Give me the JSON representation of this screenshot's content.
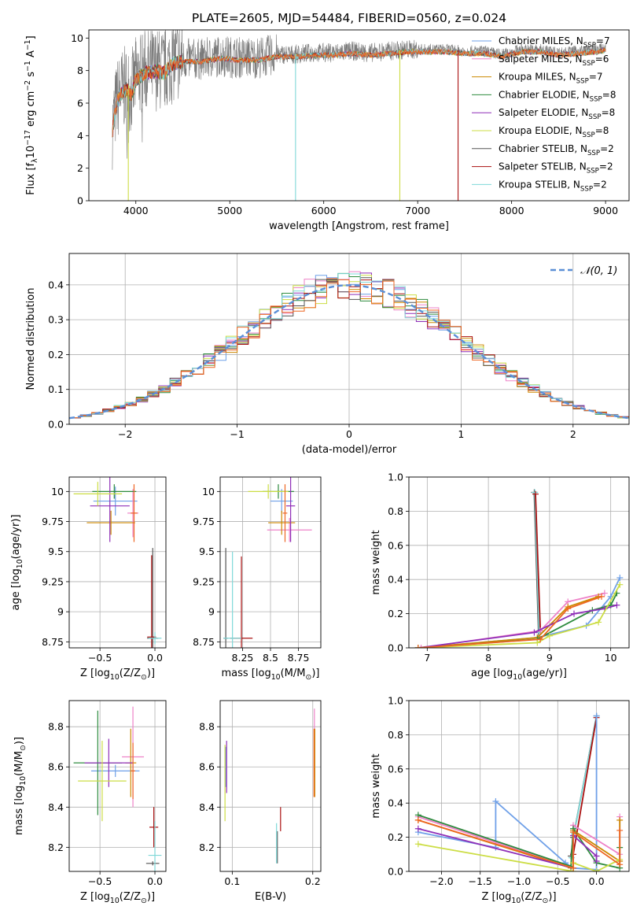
{
  "figure": {
    "title": "PLATE=2605, MJD=54484, FIBERID=0560, z=0.024"
  },
  "colors": {
    "Chabrier MILES": "#6fa0e8",
    "Salpeter MILES": "#ee82c8",
    "Kroupa MILES": "#cc8800",
    "Chabrier ELODIE": "#2e8b3e",
    "Salpeter ELODIE": "#8f2fb8",
    "Kroupa ELODIE": "#ccdd44",
    "Chabrier STELIB": "#555555",
    "Salpeter STELIB": "#aa1111",
    "Kroupa STELIB": "#7fd8d8",
    "extra_orange": "#ee6622",
    "normal_curve": "#5b8fd6"
  },
  "legend_labels": [
    {
      "pre": "Chabrier MILES, N",
      "sub": "SSP",
      "post": "=7"
    },
    {
      "pre": "Salpeter MILES, N",
      "sub": "SSP",
      "post": "=6"
    },
    {
      "pre": "Kroupa MILES, N",
      "sub": "SSP",
      "post": "=7"
    },
    {
      "pre": "Chabrier ELODIE, N",
      "sub": "SSP",
      "post": "=8"
    },
    {
      "pre": "Salpeter ELODIE, N",
      "sub": "SSP",
      "post": "=8"
    },
    {
      "pre": "Kroupa ELODIE, N",
      "sub": "SSP",
      "post": "=8"
    },
    {
      "pre": "Chabrier STELIB, N",
      "sub": "SSP",
      "post": "=2"
    },
    {
      "pre": "Salpeter STELIB, N",
      "sub": "SSP",
      "post": "=2"
    },
    {
      "pre": "Kroupa STELIB, N",
      "sub": "SSP",
      "post": "=2"
    }
  ],
  "chart_data": [
    {
      "id": "spectrum",
      "type": "line",
      "xlabel": "wavelength [Angstrom, rest frame]",
      "ylabel_parts": {
        "pre": "Flux [f",
        "sub": "λ",
        "mid": "10",
        "sup1": "−17",
        "mid2": " erg cm",
        "sup2": "−2",
        "mid3": " s",
        "sup3": "−1",
        "post": " A",
        "sup4": "−1",
        "end": "]"
      },
      "xlim": [
        3500,
        9250
      ],
      "ylim": [
        0,
        10.5
      ],
      "xticks": [
        4000,
        5000,
        6000,
        7000,
        8000,
        9000
      ],
      "yticks": [
        0,
        2,
        4,
        6,
        8,
        10
      ],
      "legend_loc": "upper right",
      "envelope": {
        "x": [
          3750,
          3800,
          3850,
          3900,
          3950,
          4000,
          4100,
          4200,
          4300,
          4400,
          4500,
          4700,
          4900,
          5100,
          5300,
          5500,
          5700,
          5900,
          6100,
          6300,
          6500,
          6700,
          6900,
          7100,
          7300,
          7500,
          7700,
          7900,
          8100,
          8300,
          8500,
          8700,
          8900,
          9000
        ],
        "y": [
          4.5,
          6.2,
          6.8,
          7.0,
          6.6,
          7.6,
          8.0,
          8.1,
          8.0,
          8.6,
          8.7,
          8.7,
          8.9,
          8.8,
          8.8,
          9.0,
          9.0,
          9.1,
          9.1,
          9.2,
          9.1,
          9.2,
          9.3,
          9.3,
          9.3,
          9.2,
          9.2,
          9.0,
          9.3,
          9.3,
          9.1,
          9.2,
          9.3,
          9.4
        ]
      },
      "drop_lines": [
        {
          "x": 3920,
          "series": "Kroupa ELODIE"
        },
        {
          "x": 5700,
          "series": "Kroupa STELIB"
        },
        {
          "x": 6810,
          "series": "Kroupa ELODIE"
        },
        {
          "x": 7430,
          "series": "Salpeter STELIB"
        }
      ]
    },
    {
      "id": "residuals",
      "type": "step",
      "xlabel": "(data-model)/error",
      "ylabel": "Normed distribution",
      "xlim": [
        -2.5,
        2.5
      ],
      "ylim": [
        0,
        0.49
      ],
      "xticks": [
        -2,
        -1,
        0,
        1,
        2
      ],
      "yticks": [
        0.0,
        0.1,
        0.2,
        0.3,
        0.4
      ],
      "bin_width": 0.1,
      "grid": true,
      "legend_label": "𝒩(0, 1)",
      "legend_loc": "upper right"
    },
    {
      "id": "age_vs_Z",
      "type": "errorbar",
      "xlabel_parts": {
        "pre": "Z [log",
        "sub": "10",
        "post": "(Z/Z",
        "sub2": "⊙",
        "end": ")]"
      },
      "ylabel_parts": {
        "pre": "age  [log",
        "sub": "10",
        "post": "(age/yr)]"
      },
      "xlim": [
        -0.78,
        0.1
      ],
      "ylim": [
        8.7,
        10.12
      ],
      "xticks": [
        -0.5,
        0.0
      ],
      "xtick_labels": [
        "−0.5",
        "0.0"
      ],
      "yticks": [
        8.75,
        9.0,
        9.25,
        9.5,
        9.75,
        10.0
      ],
      "points": [
        {
          "s": "Chabrier MILES",
          "x": -0.36,
          "xe": 0.2,
          "y": 9.92,
          "ye": 0.12
        },
        {
          "s": "Salpeter MILES",
          "x": -0.2,
          "xe": 0.05,
          "y": 9.82,
          "ye": 0.2
        },
        {
          "s": "Kroupa MILES",
          "x": -0.4,
          "xe": 0.22,
          "y": 9.74,
          "ye": 0.1
        },
        {
          "s": "Chabrier ELODIE",
          "x": -0.37,
          "xe": 0.2,
          "y": 10.0,
          "ye": 0.06
        },
        {
          "s": "Salpeter ELODIE",
          "x": -0.41,
          "xe": 0.18,
          "y": 9.88,
          "ye": 0.3
        },
        {
          "s": "Kroupa ELODIE",
          "x": -0.52,
          "xe": 0.22,
          "y": 9.98,
          "ye": 0.1
        },
        {
          "s": "Chabrier STELIB",
          "x": -0.02,
          "xe": 0.05,
          "y": 8.78,
          "ye": 0.75
        },
        {
          "s": "Salpeter STELIB",
          "x": -0.03,
          "xe": 0.04,
          "y": 8.79,
          "ye": 0.68
        },
        {
          "s": "Kroupa STELIB",
          "x": 0.0,
          "xe": 0.06,
          "y": 8.78,
          "ye": 0.05
        },
        {
          "s": "extra_orange",
          "x": -0.19,
          "xe": 0.03,
          "y": 9.82,
          "ye": 0.24
        }
      ]
    },
    {
      "id": "age_vs_mass",
      "type": "errorbar",
      "xlabel_parts": {
        "pre": "mass [log",
        "sub": "10",
        "post": "(M/M",
        "sub2": "⊙",
        "end": ")]"
      },
      "xlim": [
        8.05,
        8.95
      ],
      "ylim": [
        8.7,
        10.12
      ],
      "xticks": [
        8.25,
        8.5,
        8.75
      ],
      "yticks": [
        8.75,
        9.0,
        9.25,
        9.5,
        9.75,
        10.0
      ],
      "points": [
        {
          "s": "Chabrier MILES",
          "x": 8.6,
          "xe": 0.1,
          "y": 9.92,
          "ye": 0.1
        },
        {
          "s": "Salpeter MILES",
          "x": 8.67,
          "xe": 0.2,
          "y": 9.68,
          "ye": 0.1
        },
        {
          "s": "Kroupa MILES",
          "x": 8.6,
          "xe": 0.12,
          "y": 9.74,
          "ye": 0.1
        },
        {
          "s": "Chabrier ELODIE",
          "x": 8.57,
          "xe": 0.14,
          "y": 10.0,
          "ye": 0.06
        },
        {
          "s": "Salpeter ELODIE",
          "x": 8.68,
          "xe": 0.04,
          "y": 9.88,
          "ye": 0.3
        },
        {
          "s": "Kroupa ELODIE",
          "x": 8.48,
          "xe": 0.18,
          "y": 10.0,
          "ye": 0.06
        },
        {
          "s": "Chabrier STELIB",
          "x": 8.1,
          "xe": 0.02,
          "y": 8.78,
          "ye": 0.75
        },
        {
          "s": "Salpeter STELIB",
          "x": 8.24,
          "xe": 0.1,
          "y": 8.78,
          "ye": 0.68
        },
        {
          "s": "Kroupa STELIB",
          "x": 8.16,
          "xe": 0.08,
          "y": 8.78,
          "ye": 0.72
        },
        {
          "s": "extra_orange",
          "x": 8.63,
          "xe": 0.02,
          "y": 9.82,
          "ye": 0.24
        }
      ]
    },
    {
      "id": "weight_vs_age",
      "type": "line",
      "xlabel_parts": {
        "pre": "age  [log",
        "sub": "10",
        "post": "(age/yr)]"
      },
      "ylabel": "mass weight",
      "xlim": [
        6.7,
        10.3
      ],
      "ylim": [
        0,
        1.0
      ],
      "xticks": [
        7,
        8,
        9,
        10
      ],
      "yticks": [
        0.0,
        0.2,
        0.4,
        0.6,
        0.8,
        1.0
      ],
      "series": [
        {
          "s": "Chabrier STELIB",
          "x": [
            8.75,
            8.82
          ],
          "y": [
            0.91,
            0.09
          ]
        },
        {
          "s": "Kroupa STELIB",
          "x": [
            8.76,
            8.83
          ],
          "y": [
            0.91,
            0.09
          ]
        },
        {
          "s": "Salpeter STELIB",
          "x": [
            8.77,
            8.85
          ],
          "y": [
            0.9,
            0.1
          ]
        },
        {
          "s": "Chabrier MILES",
          "x": [
            6.85,
            8.8,
            9.6,
            10.0,
            10.15
          ],
          "y": [
            0.0,
            0.06,
            0.13,
            0.3,
            0.41
          ]
        },
        {
          "s": "Salpeter MILES",
          "x": [
            6.9,
            8.85,
            9.3,
            9.9
          ],
          "y": [
            0.0,
            0.1,
            0.27,
            0.32
          ]
        },
        {
          "s": "Kroupa MILES",
          "x": [
            6.85,
            8.8,
            9.3,
            9.8
          ],
          "y": [
            0.0,
            0.06,
            0.24,
            0.3
          ]
        },
        {
          "s": "Chabrier ELODIE",
          "x": [
            6.85,
            8.8,
            9.7,
            10.0,
            10.1
          ],
          "y": [
            0.0,
            0.05,
            0.22,
            0.25,
            0.32
          ]
        },
        {
          "s": "Salpeter ELODIE",
          "x": [
            6.85,
            8.75,
            9.4,
            9.9,
            10.1
          ],
          "y": [
            0.0,
            0.09,
            0.2,
            0.23,
            0.25
          ]
        },
        {
          "s": "Kroupa ELODIE",
          "x": [
            6.85,
            8.8,
            9.0,
            9.8,
            10.15
          ],
          "y": [
            0.0,
            0.03,
            0.07,
            0.15,
            0.37
          ]
        },
        {
          "s": "extra_orange",
          "x": [
            6.85,
            8.85,
            9.3,
            9.85
          ],
          "y": [
            0.0,
            0.05,
            0.23,
            0.3
          ]
        }
      ]
    },
    {
      "id": "mass_vs_Z",
      "type": "errorbar",
      "xlabel_parts": {
        "pre": "Z [log",
        "sub": "10",
        "post": "(Z/Z",
        "sub2": "⊙",
        "end": ")]"
      },
      "ylabel_parts": {
        "pre": "mass [log",
        "sub": "10",
        "post": "(M/M",
        "sub2": "⊙",
        "end": ")]"
      },
      "xlim": [
        -0.78,
        0.1
      ],
      "ylim": [
        8.08,
        8.93
      ],
      "xticks": [
        -0.5,
        0.0
      ],
      "xtick_labels": [
        "−0.5",
        "0.0"
      ],
      "yticks": [
        8.2,
        8.4,
        8.6,
        8.8
      ],
      "points": [
        {
          "s": "Chabrier MILES",
          "x": -0.36,
          "xe": 0.22,
          "y": 8.58,
          "ye": 0.03
        },
        {
          "s": "Salpeter MILES",
          "x": -0.2,
          "xe": 0.1,
          "y": 8.65,
          "ye": 0.25
        },
        {
          "s": "Kroupa MILES",
          "x": -0.22,
          "xe": 0.05,
          "y": 8.62,
          "ye": 0.17
        },
        {
          "s": "Chabrier ELODIE",
          "x": -0.52,
          "xe": 0.22,
          "y": 8.62,
          "ye": 0.26
        },
        {
          "s": "Salpeter ELODIE",
          "x": -0.42,
          "xe": 0.22,
          "y": 8.62,
          "ye": 0.12
        },
        {
          "s": "Kroupa ELODIE",
          "x": -0.48,
          "xe": 0.22,
          "y": 8.53,
          "ye": 0.2
        },
        {
          "s": "Chabrier STELIB",
          "x": -0.02,
          "xe": 0.06,
          "y": 8.12,
          "ye": 0.01
        },
        {
          "s": "Salpeter STELIB",
          "x": -0.01,
          "xe": 0.04,
          "y": 8.3,
          "ye": 0.1
        },
        {
          "s": "Kroupa STELIB",
          "x": 0.0,
          "xe": 0.06,
          "y": 8.16,
          "ye": 0.17
        },
        {
          "s": "extra_orange",
          "x": -0.2,
          "xe": 0.02,
          "y": 8.58,
          "ye": 0.14
        }
      ]
    },
    {
      "id": "mass_vs_ebv",
      "type": "errorbar",
      "xlabel": "E(B-V)",
      "xlim": [
        0.085,
        0.21
      ],
      "ylim": [
        8.08,
        8.93
      ],
      "xticks": [
        0.1,
        0.2
      ],
      "xtick_labels": [
        "0.1",
        "0.2"
      ],
      "yticks": [
        8.2,
        8.4,
        8.6,
        8.8
      ],
      "points": [
        {
          "s": "Chabrier MILES",
          "x": 0.0918,
          "xe": 0,
          "y": 8.6,
          "ye": 0.1
        },
        {
          "s": "Salpeter MILES",
          "x": 0.202,
          "xe": 0,
          "y": 8.72,
          "ye": 0.17
        },
        {
          "s": "Kroupa MILES",
          "x": 0.2025,
          "xe": 0,
          "y": 8.62,
          "ye": 0.17
        },
        {
          "s": "Salpeter ELODIE",
          "x": 0.093,
          "xe": 0,
          "y": 8.6,
          "ye": 0.13
        },
        {
          "s": "Kroupa ELODIE",
          "x": 0.091,
          "xe": 0,
          "y": 8.52,
          "ye": 0.19
        },
        {
          "s": "Chabrier STELIB",
          "x": 0.156,
          "xe": 0,
          "y": 8.2,
          "ye": 0.08
        },
        {
          "s": "Kroupa STELIB",
          "x": 0.155,
          "xe": 0,
          "y": 8.22,
          "ye": 0.1
        },
        {
          "s": "Salpeter STELIB",
          "x": 0.16,
          "xe": 0,
          "y": 8.34,
          "ye": 0.06
        },
        {
          "s": "extra_orange",
          "x": 0.2015,
          "xe": 0,
          "y": 8.62,
          "ye": 0.17
        }
      ]
    },
    {
      "id": "weight_vs_Z",
      "type": "line",
      "xlabel_parts": {
        "pre": "Z [log",
        "sub": "10",
        "post": "(Z/Z",
        "sub2": "⊙",
        "end": ")]"
      },
      "ylabel": "mass weight",
      "xlim": [
        -2.42,
        0.42
      ],
      "ylim": [
        0,
        1.0
      ],
      "xticks": [
        -2.0,
        -1.5,
        -1.0,
        -0.5,
        0.0
      ],
      "xtick_labels": [
        "−2.0",
        "−1.5",
        "−1.0",
        "−0.5",
        "0.0"
      ],
      "yticks": [
        0.0,
        0.2,
        0.4,
        0.6,
        0.8,
        1.0
      ],
      "series": [
        {
          "s": "Chabrier STELIB",
          "x": [
            -0.33,
            -0.3,
            0.0
          ],
          "y": [
            0.09,
            0.2,
            0.91
          ]
        },
        {
          "s": "Kroupa STELIB",
          "x": [
            -0.32,
            -0.29,
            0.0
          ],
          "y": [
            0.08,
            0.22,
            0.91
          ]
        },
        {
          "s": "Salpeter STELIB",
          "x": [
            -0.3,
            0.0
          ],
          "y": [
            0.1,
            0.9
          ]
        },
        {
          "s": "Chabrier MILES",
          "x": [
            -2.3,
            -1.3,
            -1.3,
            -0.4,
            -0.3,
            0.0,
            0.0
          ],
          "y": [
            0.23,
            0.14,
            0.41,
            0.05,
            0.02,
            0.01,
            0.91
          ]
        },
        {
          "s": "Salpeter MILES",
          "x": [
            -2.3,
            -0.3,
            -0.3,
            0.3,
            0.3
          ],
          "y": [
            0.32,
            0.02,
            0.27,
            0.1,
            0.32
          ]
        },
        {
          "s": "Kroupa MILES",
          "x": [
            -2.3,
            -0.33,
            -0.3,
            0.3,
            0.3
          ],
          "y": [
            0.3,
            0.02,
            0.24,
            0.06,
            0.3
          ]
        },
        {
          "s": "Chabrier ELODIE",
          "x": [
            -2.3,
            -0.33,
            -0.3,
            0.0,
            0.3,
            0.3
          ],
          "y": [
            0.33,
            0.03,
            0.25,
            0.05,
            0.02,
            0.14
          ]
        },
        {
          "s": "Salpeter ELODIE",
          "x": [
            -2.3,
            -0.3,
            -0.3,
            0.0,
            0.0
          ],
          "y": [
            0.25,
            0.02,
            0.21,
            0.09,
            0.06
          ]
        },
        {
          "s": "Kroupa ELODIE",
          "x": [
            -2.3,
            -0.3,
            -0.3,
            0.0,
            0.3
          ],
          "y": [
            0.16,
            0.0,
            0.05,
            0.0,
            0.07
          ]
        },
        {
          "s": "extra_orange",
          "x": [
            -2.3,
            -0.3,
            -0.3,
            0.3,
            0.3
          ],
          "y": [
            0.3,
            0.02,
            0.23,
            0.04,
            0.24
          ]
        }
      ]
    }
  ]
}
